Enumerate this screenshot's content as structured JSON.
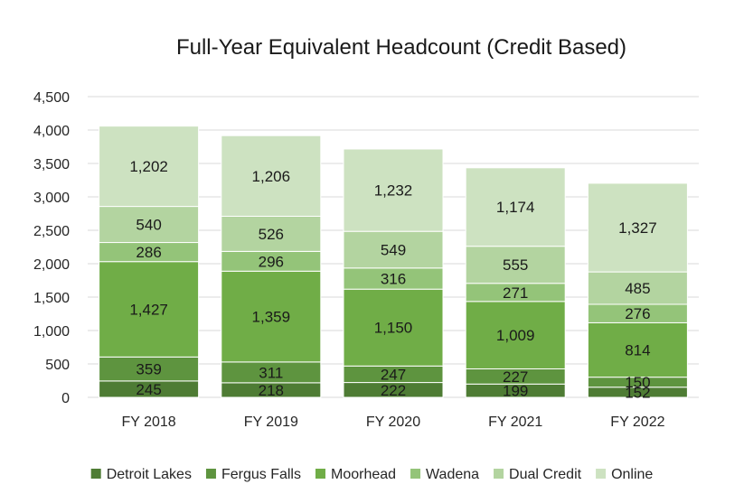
{
  "chart_data": {
    "type": "bar",
    "stacked": true,
    "title": "Full-Year Equivalent Headcount (Credit Based)",
    "xlabel": "",
    "ylabel": "",
    "ylim": [
      0,
      4500
    ],
    "yticks": [
      0,
      500,
      1000,
      1500,
      2000,
      2500,
      3000,
      3500,
      4000,
      4500
    ],
    "ytick_labels": [
      "0",
      "500",
      "1,000",
      "1,500",
      "2,000",
      "2,500",
      "3,000",
      "3,500",
      "4,000",
      "4,500"
    ],
    "grid": true,
    "legend_position": "bottom",
    "categories": [
      "FY 2018",
      "FY 2019",
      "FY 2020",
      "FY 2021",
      "FY 2022"
    ],
    "series": [
      {
        "name": "Detroit Lakes",
        "color": "#4e7c34",
        "values": [
          245,
          218,
          222,
          199,
          152
        ],
        "labels": [
          "245",
          "218",
          "222",
          "199",
          "152"
        ]
      },
      {
        "name": "Fergus Falls",
        "color": "#5e943f",
        "values": [
          359,
          311,
          247,
          227,
          150
        ],
        "labels": [
          "359",
          "311",
          "247",
          "227",
          "150"
        ]
      },
      {
        "name": "Moorhead",
        "color": "#70ad47",
        "values": [
          1427,
          1359,
          1150,
          1009,
          814
        ],
        "labels": [
          "1,427",
          "1,359",
          "1,150",
          "1,009",
          "814"
        ]
      },
      {
        "name": "Wadena",
        "color": "#94c479",
        "values": [
          286,
          296,
          316,
          271,
          276
        ],
        "labels": [
          "286",
          "296",
          "316",
          "271",
          "276"
        ]
      },
      {
        "name": "Dual Credit",
        "color": "#b3d4a0",
        "values": [
          540,
          526,
          549,
          555,
          485
        ],
        "labels": [
          "540",
          "526",
          "549",
          "555",
          "485"
        ]
      },
      {
        "name": "Online",
        "color": "#cde2c1",
        "values": [
          1202,
          1206,
          1232,
          1174,
          1327
        ],
        "labels": [
          "1,202",
          "1,206",
          "1,232",
          "1,174",
          "1,327"
        ]
      }
    ],
    "gridline_color": "#d9d9d9"
  }
}
